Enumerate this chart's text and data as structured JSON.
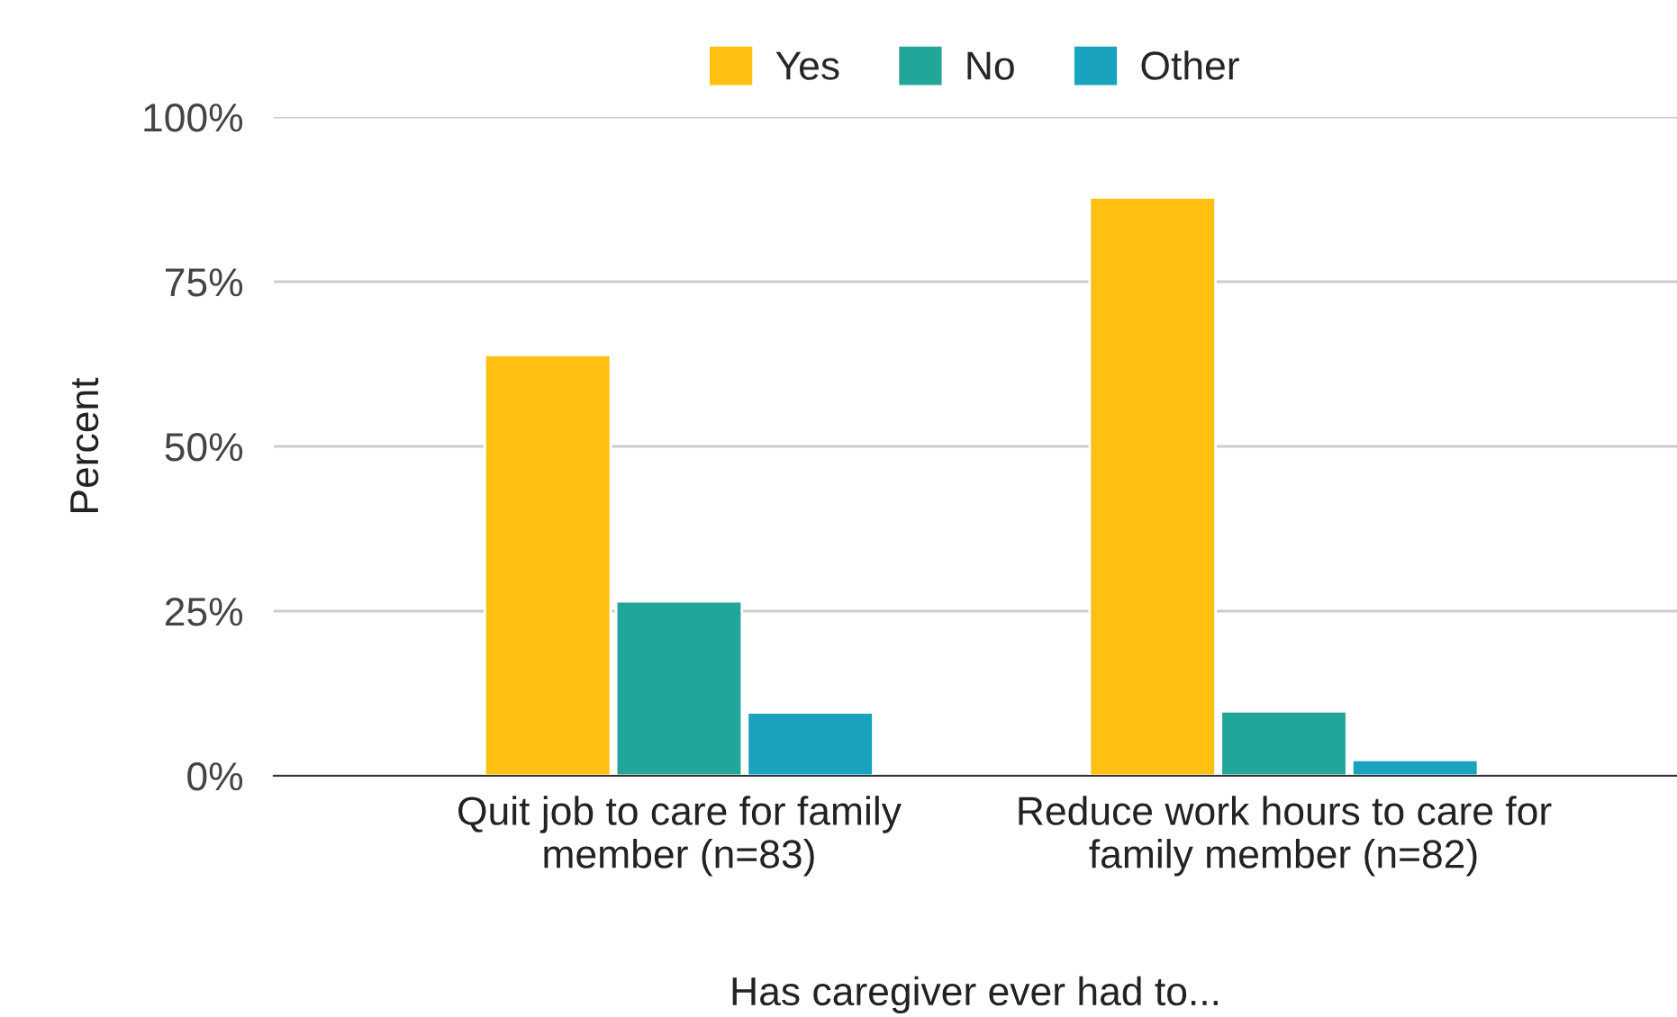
{
  "chart_data": {
    "type": "bar",
    "xlabel": "Has caregiver ever had to...",
    "ylabel": "Percent",
    "categories": [
      "Quit job to care for family member (n=83)",
      "Reduce work hours to care for family member (n=82)"
    ],
    "series": [
      {
        "name": "Yes",
        "color": "#ffc012",
        "values": [
          63.9,
          87.8
        ]
      },
      {
        "name": "No",
        "color": "#22a699",
        "values": [
          26.5,
          9.8
        ]
      },
      {
        "name": "Other",
        "color": "#19a3bf",
        "values": [
          9.6,
          2.4
        ]
      }
    ],
    "ylim": [
      0,
      100
    ],
    "yticks": [
      {
        "value": 0,
        "label": "0%"
      },
      {
        "value": 25,
        "label": "25%"
      },
      {
        "value": 50,
        "label": "50%"
      },
      {
        "value": 75,
        "label": "75%"
      },
      {
        "value": 100,
        "label": "100%"
      }
    ],
    "grid": "y",
    "legend": "top"
  }
}
